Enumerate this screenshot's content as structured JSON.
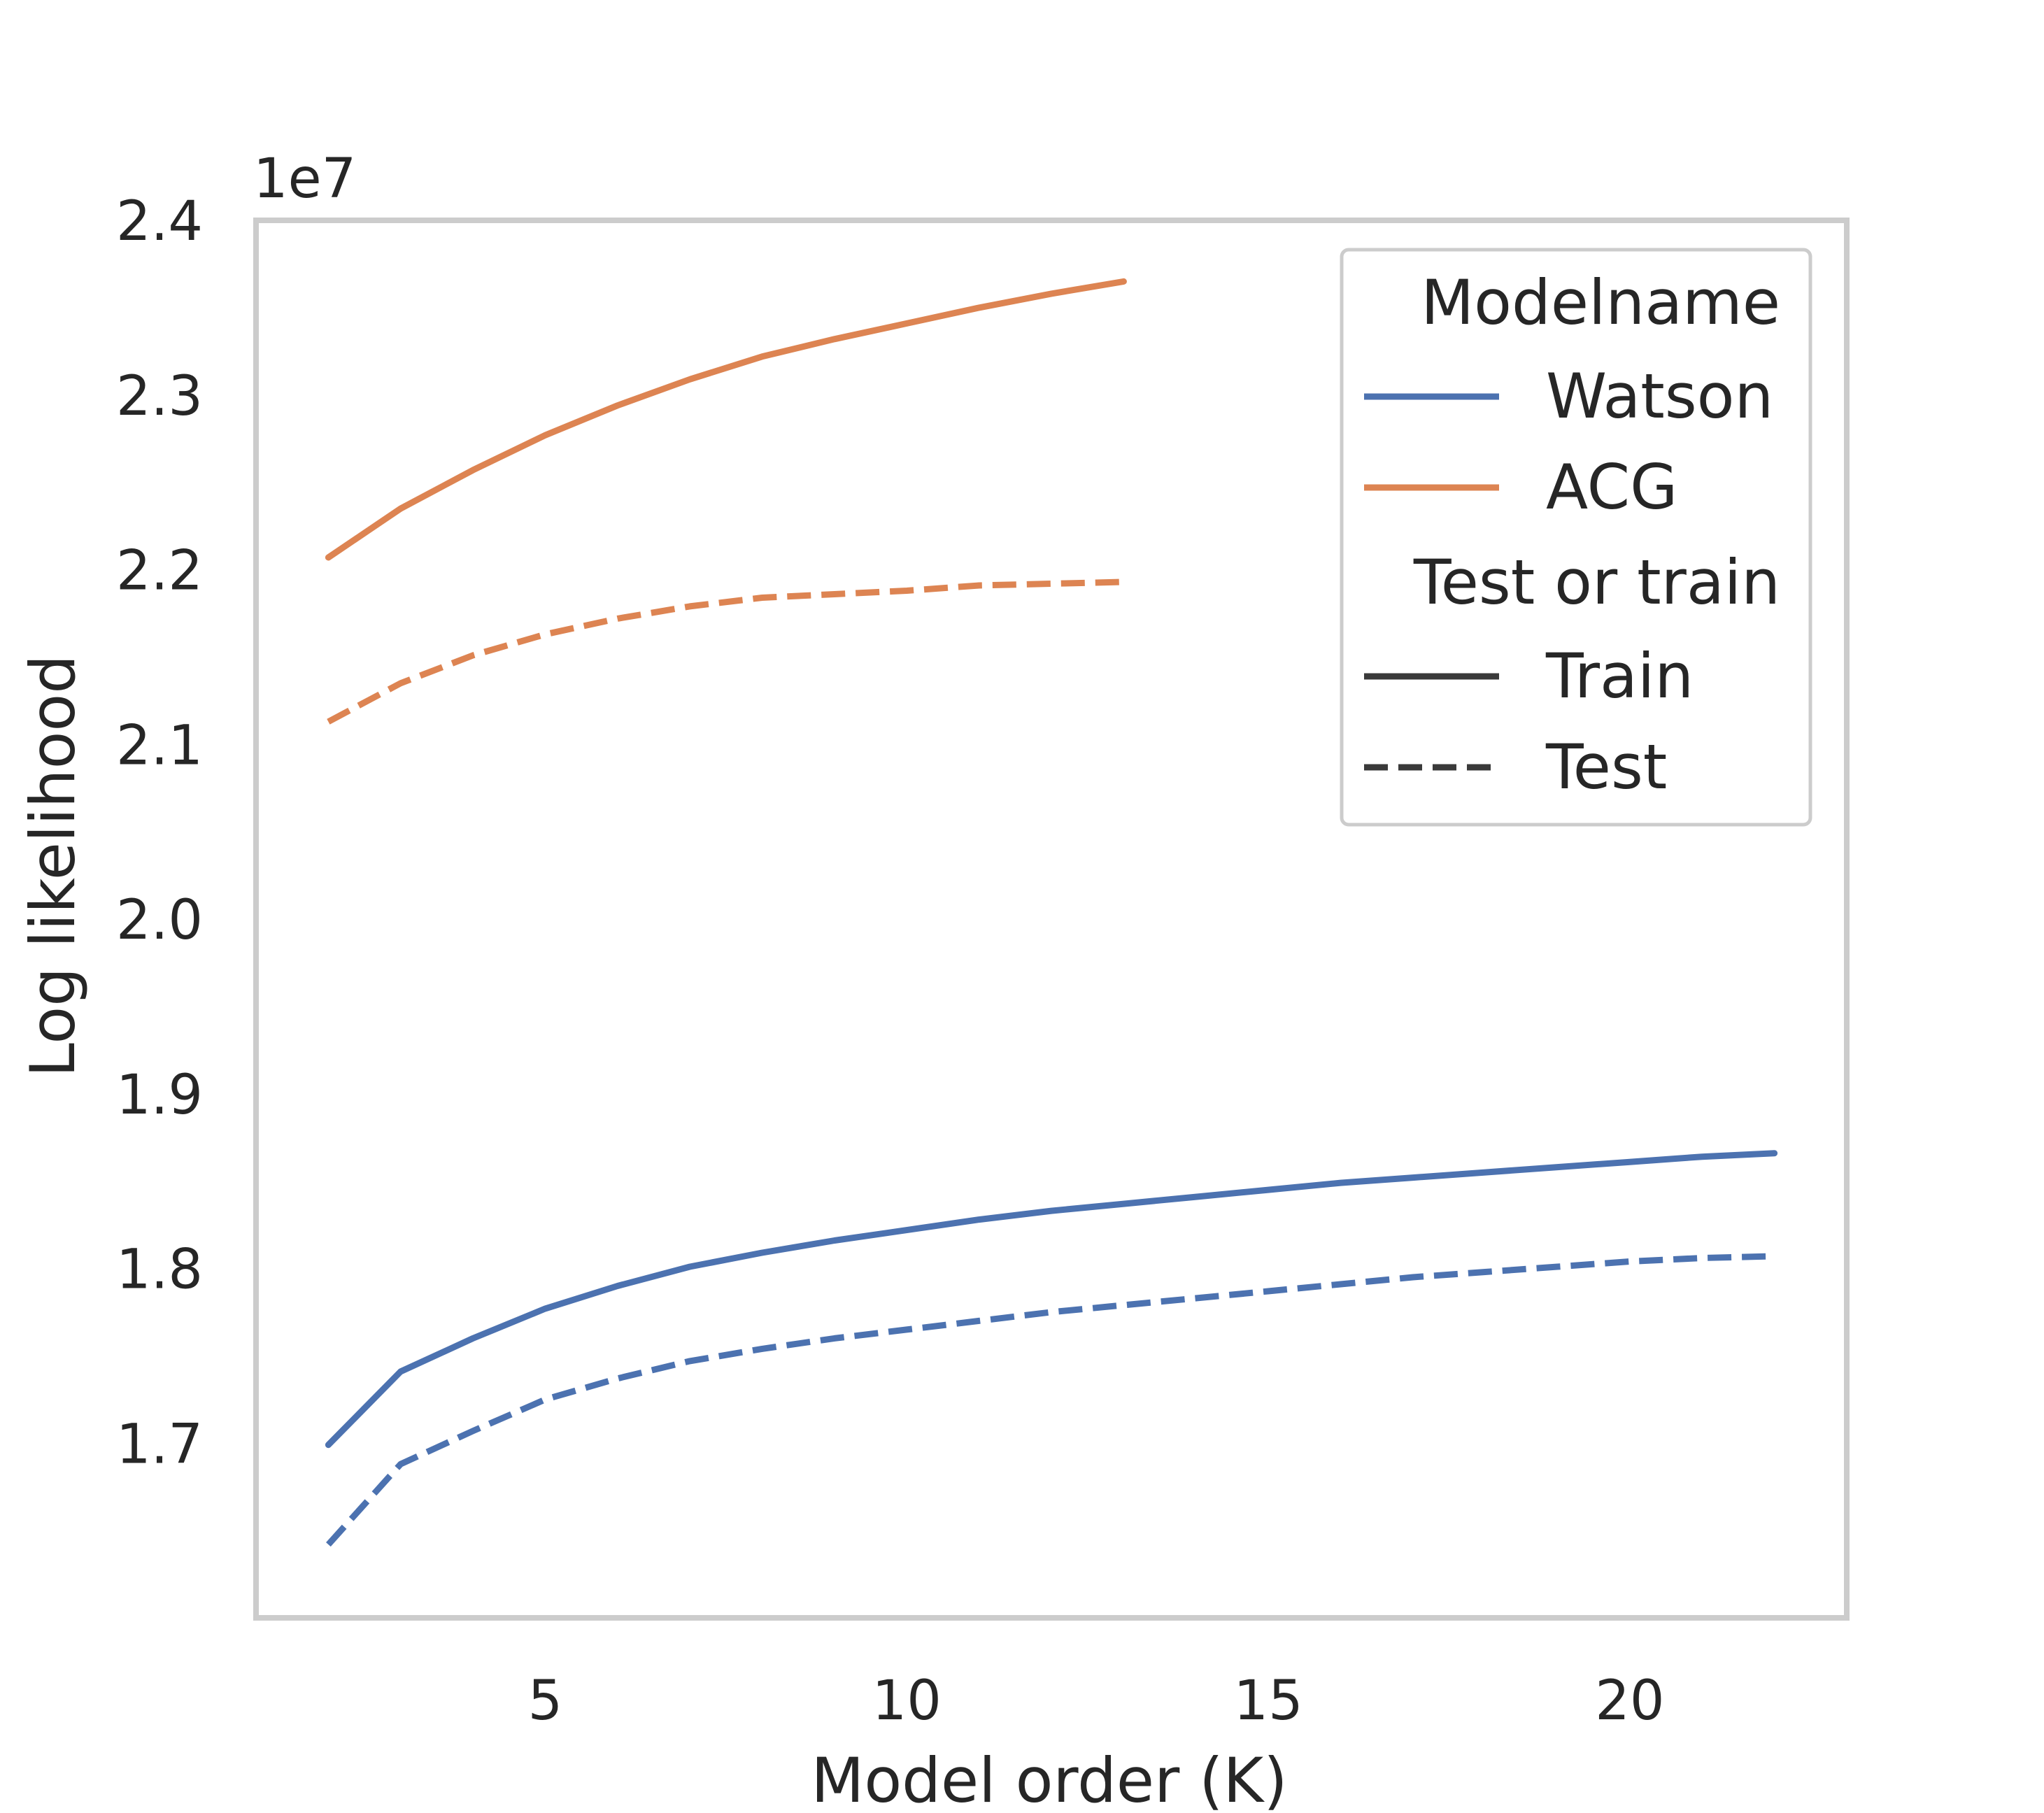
{
  "chart_data": {
    "type": "line",
    "xlabel": "Model order (K)",
    "ylabel": "Log likelihood",
    "offset_label": "1e7",
    "xlim": [
      1,
      23
    ],
    "ylim": [
      1.6,
      2.4
    ],
    "x_ticks": [
      5,
      10,
      15,
      20
    ],
    "x_tick_labels": [
      "5",
      "10",
      "15",
      "20"
    ],
    "y_ticks": [
      1.7,
      1.8,
      1.9,
      2.0,
      2.1,
      2.2,
      2.3,
      2.4
    ],
    "y_tick_labels": [
      "1.7",
      "1.8",
      "1.9",
      "2.0",
      "2.1",
      "2.2",
      "2.3",
      "2.4"
    ],
    "grid": false,
    "legend": {
      "position": "top-right",
      "hue_title": "Modelname",
      "style_title": "Test or train",
      "hue_entries": [
        {
          "label": "Watson",
          "color": "#4c72b0"
        },
        {
          "label": "ACG",
          "color": "#dd8452"
        }
      ],
      "style_entries": [
        {
          "label": "Train",
          "dash": "solid"
        },
        {
          "label": "Test",
          "dash": "dashed"
        }
      ]
    },
    "series": [
      {
        "model": "ACG",
        "split": "Train",
        "color": "#dd8452",
        "dash": "solid",
        "x": [
          2,
          3,
          4,
          5,
          6,
          7,
          8,
          9,
          10,
          11,
          12,
          13
        ],
        "values": [
          2.207,
          2.235,
          2.257,
          2.277,
          2.294,
          2.309,
          2.322,
          2.332,
          2.341,
          2.35,
          2.358,
          2.365
        ]
      },
      {
        "model": "ACG",
        "split": "Test",
        "color": "#dd8452",
        "dash": "dashed",
        "x": [
          2,
          3,
          4,
          5,
          6,
          7,
          8,
          9,
          10,
          11,
          12,
          13
        ],
        "values": [
          2.113,
          2.135,
          2.151,
          2.163,
          2.172,
          2.179,
          2.184,
          2.186,
          2.188,
          2.191,
          2.192,
          2.193
        ]
      },
      {
        "model": "Watson",
        "split": "Train",
        "color": "#4c72b0",
        "dash": "solid",
        "x": [
          2,
          3,
          4,
          5,
          6,
          7,
          8,
          9,
          10,
          11,
          12,
          13,
          14,
          15,
          16,
          17,
          18,
          19,
          20,
          21,
          22
        ],
        "values": [
          1.699,
          1.741,
          1.76,
          1.777,
          1.79,
          1.801,
          1.809,
          1.816,
          1.822,
          1.828,
          1.833,
          1.837,
          1.841,
          1.845,
          1.849,
          1.852,
          1.855,
          1.858,
          1.861,
          1.864,
          1.866
        ]
      },
      {
        "model": "Watson",
        "split": "Test",
        "color": "#4c72b0",
        "dash": "dashed",
        "x": [
          2,
          3,
          4,
          5,
          6,
          7,
          8,
          9,
          10,
          11,
          12,
          13,
          14,
          15,
          16,
          17,
          18,
          19,
          20,
          21,
          22
        ],
        "values": [
          1.642,
          1.688,
          1.707,
          1.725,
          1.737,
          1.747,
          1.754,
          1.76,
          1.765,
          1.77,
          1.775,
          1.779,
          1.783,
          1.787,
          1.791,
          1.795,
          1.798,
          1.801,
          1.804,
          1.806,
          1.807
        ]
      }
    ]
  }
}
